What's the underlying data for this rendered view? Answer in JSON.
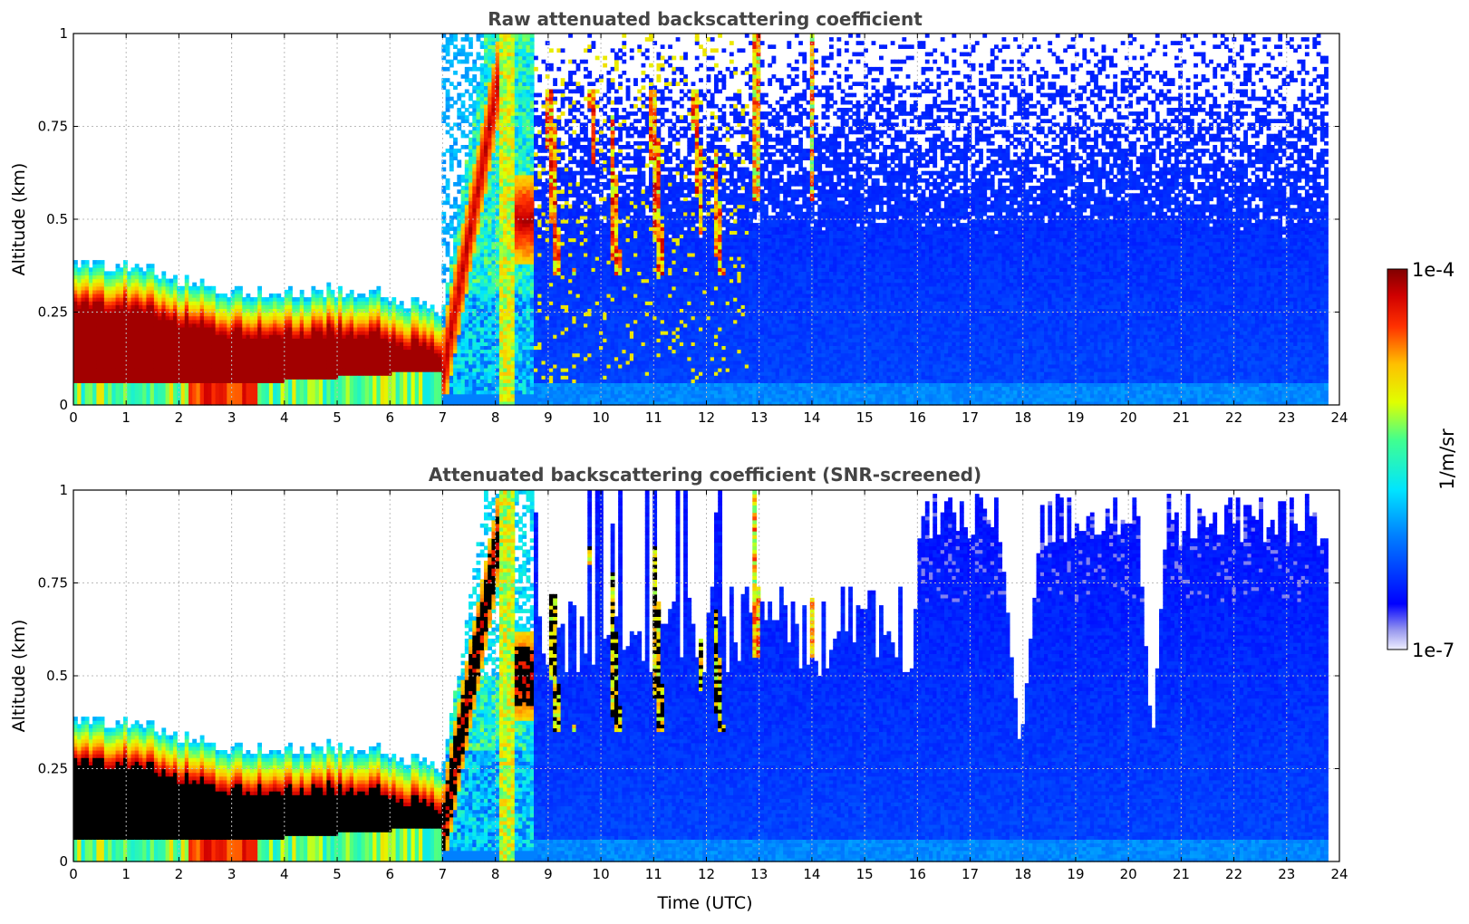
{
  "chart_data": [
    {
      "type": "heatmap",
      "title": "Raw attenuated backscattering coefficient",
      "xlabel": "",
      "ylabel": "Altitude (km)",
      "xlim": [
        0,
        24
      ],
      "ylim": [
        0,
        1
      ],
      "xticks": [
        "0",
        "1",
        "2",
        "3",
        "4",
        "5",
        "6",
        "7",
        "8",
        "9",
        "10",
        "11",
        "12",
        "13",
        "14",
        "15",
        "16",
        "17",
        "18",
        "19",
        "20",
        "21",
        "22",
        "23",
        "24"
      ],
      "yticks": [
        "0",
        "0.25",
        "0.5",
        "0.75",
        "1"
      ],
      "grid": true,
      "data_end_time": 23.8,
      "layers": [
        {
          "name": "surface boundary layer top",
          "start": 0,
          "end": 6.9,
          "top_km": [
            0.35,
            0.35,
            0.31,
            0.28,
            0.27,
            0.28,
            0.27,
            0.22
          ]
        },
        {
          "name": "rising aerosol plume",
          "start": 7.0,
          "end": 8.5,
          "top_km": [
            0.3,
            0.6,
            1.0
          ]
        }
      ],
      "screened": false
    },
    {
      "type": "heatmap",
      "title": "Attenuated backscattering coefficient (SNR-screened)",
      "xlabel": "Time (UTC)",
      "ylabel": "Altitude (km)",
      "xlim": [
        0,
        24
      ],
      "ylim": [
        0,
        1
      ],
      "xticks": [
        "0",
        "1",
        "2",
        "3",
        "4",
        "5",
        "6",
        "7",
        "8",
        "9",
        "10",
        "11",
        "12",
        "13",
        "14",
        "15",
        "16",
        "17",
        "18",
        "19",
        "20",
        "21",
        "22",
        "23",
        "24"
      ],
      "yticks": [
        "0",
        "0.25",
        "0.5",
        "0.75",
        "1"
      ],
      "grid": true,
      "data_end_time": 23.8,
      "gaps": [
        {
          "start": 17.6,
          "end": 18.3,
          "min_alt_km": 0.29
        },
        {
          "start": 20.2,
          "end": 20.7,
          "min_alt_km": 0.31
        }
      ],
      "screened": true
    }
  ],
  "colorbar": {
    "label": "1/m/sr",
    "max_label": "1e-4",
    "min_label": "1e-7",
    "scale": "log",
    "range": [
      1e-07,
      0.0001
    ],
    "colormap": "jet"
  }
}
